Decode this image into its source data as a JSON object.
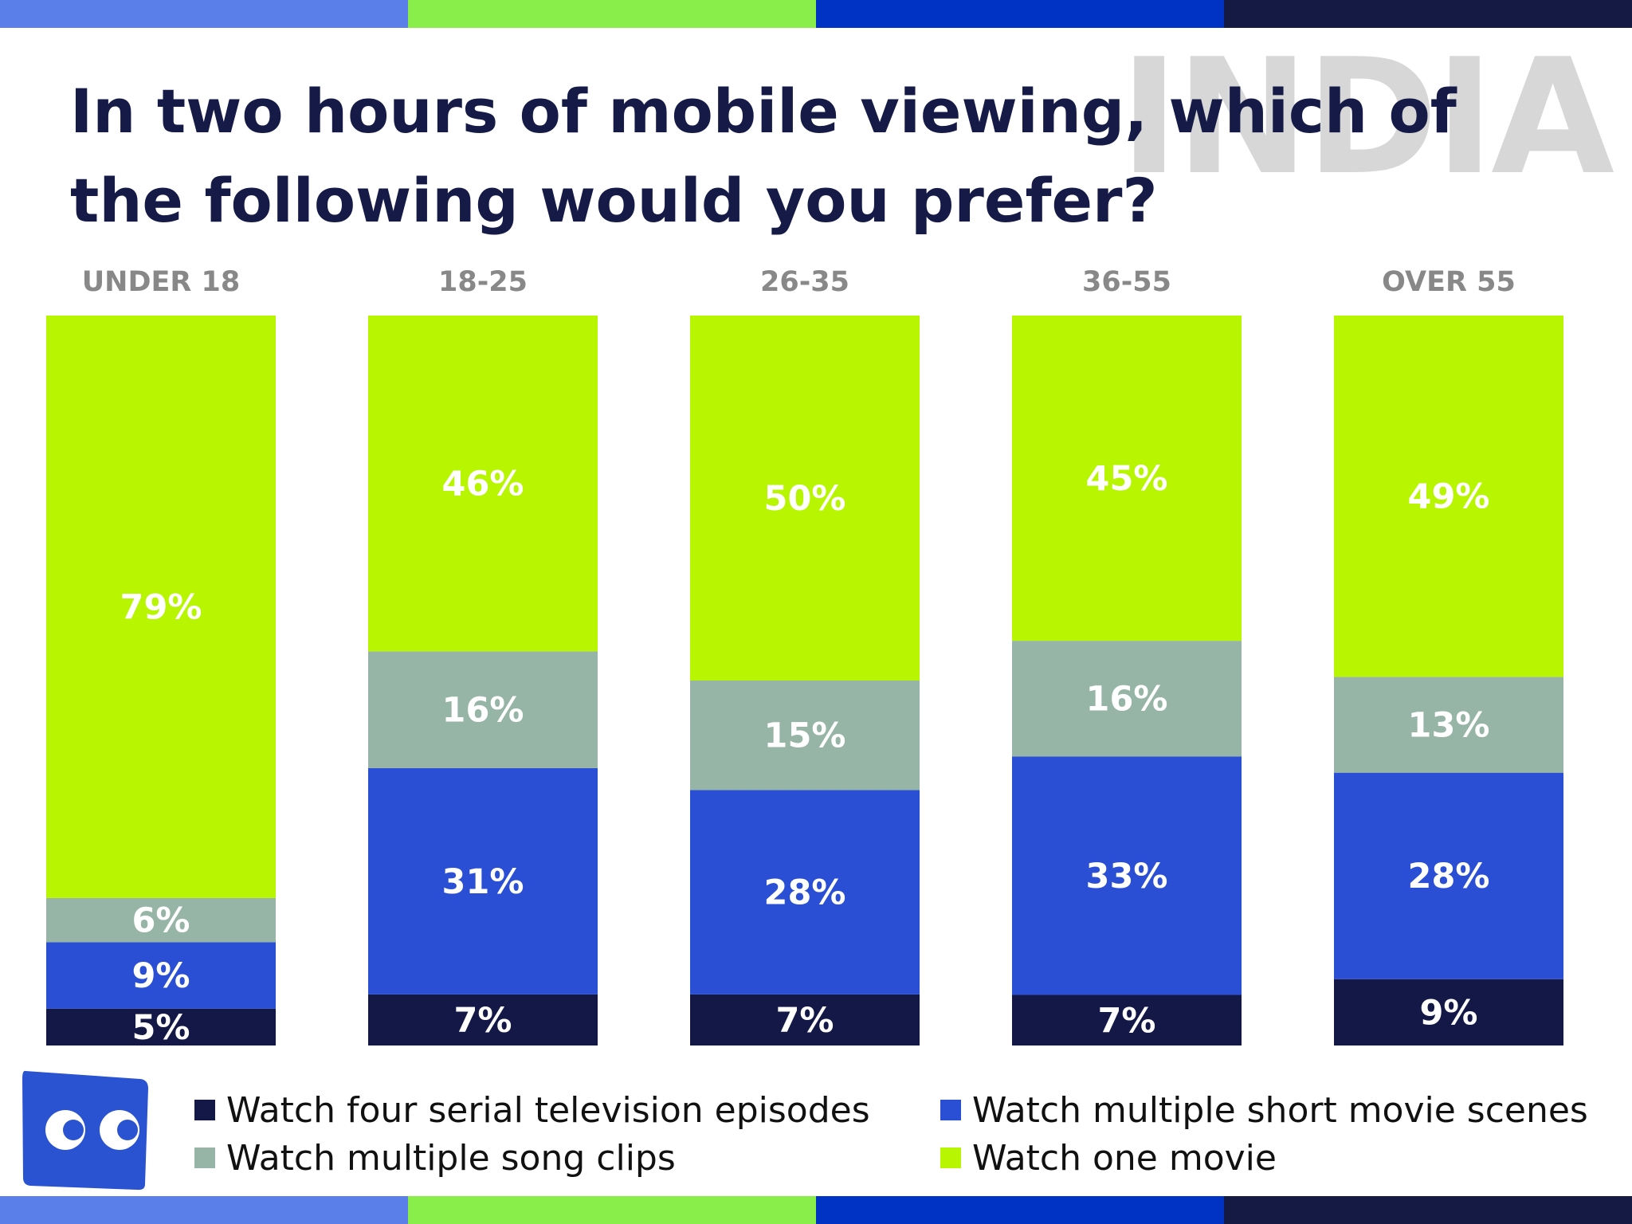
{
  "title": "In two hours of mobile viewing, which of the following would you prefer?",
  "watermark": "INDIA",
  "colors": {
    "stripe": [
      "#5b7fe8",
      "#8aee4a",
      "#0033c4",
      "#141a44"
    ],
    "title": "#151a47"
  },
  "logo": {
    "icon": "eyes-logo-icon",
    "color": "#2a53d2"
  },
  "chart_data": {
    "type": "bar",
    "stacked": true,
    "categories": [
      "UNDER 18",
      "18-25",
      "26-35",
      "36-55",
      "OVER 55"
    ],
    "ylim": [
      0,
      100
    ],
    "grid": false,
    "legend_position": "bottom",
    "series": [
      {
        "name": "Watch four serial television episodes",
        "color": "#141847",
        "values": [
          5,
          7,
          7,
          7,
          9
        ]
      },
      {
        "name": "Watch multiple short movie scenes",
        "color": "#2a4fd4",
        "values": [
          9,
          31,
          28,
          33,
          28
        ]
      },
      {
        "name": "Watch multiple song clips",
        "color": "#97b5a6",
        "values": [
          6,
          16,
          15,
          16,
          13
        ]
      },
      {
        "name": "Watch one movie",
        "color": "#b8f500",
        "values": [
          79,
          46,
          50,
          45,
          49
        ]
      }
    ],
    "legend_order": [
      0,
      1,
      2,
      3
    ]
  }
}
